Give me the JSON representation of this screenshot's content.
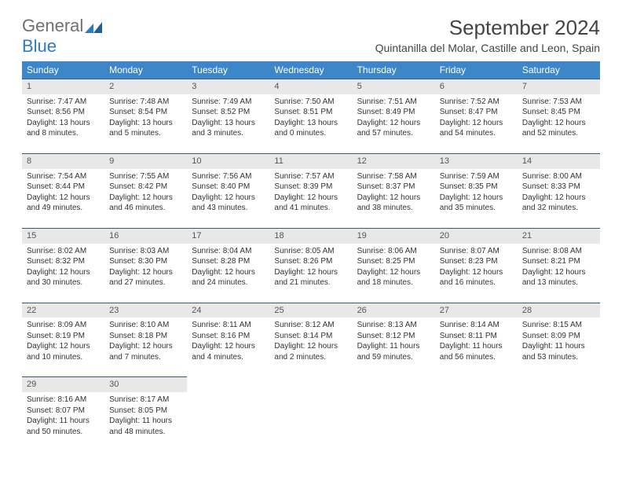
{
  "logo": {
    "text_general": "General",
    "text_blue": "Blue"
  },
  "title": "September 2024",
  "location": "Quintanilla del Molar, Castille and Leon, Spain",
  "colors": {
    "header_bg": "#3d87c9",
    "header_text": "#ffffff",
    "daynum_bg": "#e8e8e8",
    "row_border": "#2c5d8a",
    "logo_blue": "#2e7cc0",
    "logo_gray": "#707070"
  },
  "weekdays": [
    "Sunday",
    "Monday",
    "Tuesday",
    "Wednesday",
    "Thursday",
    "Friday",
    "Saturday"
  ],
  "cells": [
    {
      "n": "1",
      "sr": "7:47 AM",
      "ss": "8:56 PM",
      "dl": "13 hours and 8 minutes."
    },
    {
      "n": "2",
      "sr": "7:48 AM",
      "ss": "8:54 PM",
      "dl": "13 hours and 5 minutes."
    },
    {
      "n": "3",
      "sr": "7:49 AM",
      "ss": "8:52 PM",
      "dl": "13 hours and 3 minutes."
    },
    {
      "n": "4",
      "sr": "7:50 AM",
      "ss": "8:51 PM",
      "dl": "13 hours and 0 minutes."
    },
    {
      "n": "5",
      "sr": "7:51 AM",
      "ss": "8:49 PM",
      "dl": "12 hours and 57 minutes."
    },
    {
      "n": "6",
      "sr": "7:52 AM",
      "ss": "8:47 PM",
      "dl": "12 hours and 54 minutes."
    },
    {
      "n": "7",
      "sr": "7:53 AM",
      "ss": "8:45 PM",
      "dl": "12 hours and 52 minutes."
    },
    {
      "n": "8",
      "sr": "7:54 AM",
      "ss": "8:44 PM",
      "dl": "12 hours and 49 minutes."
    },
    {
      "n": "9",
      "sr": "7:55 AM",
      "ss": "8:42 PM",
      "dl": "12 hours and 46 minutes."
    },
    {
      "n": "10",
      "sr": "7:56 AM",
      "ss": "8:40 PM",
      "dl": "12 hours and 43 minutes."
    },
    {
      "n": "11",
      "sr": "7:57 AM",
      "ss": "8:39 PM",
      "dl": "12 hours and 41 minutes."
    },
    {
      "n": "12",
      "sr": "7:58 AM",
      "ss": "8:37 PM",
      "dl": "12 hours and 38 minutes."
    },
    {
      "n": "13",
      "sr": "7:59 AM",
      "ss": "8:35 PM",
      "dl": "12 hours and 35 minutes."
    },
    {
      "n": "14",
      "sr": "8:00 AM",
      "ss": "8:33 PM",
      "dl": "12 hours and 32 minutes."
    },
    {
      "n": "15",
      "sr": "8:02 AM",
      "ss": "8:32 PM",
      "dl": "12 hours and 30 minutes."
    },
    {
      "n": "16",
      "sr": "8:03 AM",
      "ss": "8:30 PM",
      "dl": "12 hours and 27 minutes."
    },
    {
      "n": "17",
      "sr": "8:04 AM",
      "ss": "8:28 PM",
      "dl": "12 hours and 24 minutes."
    },
    {
      "n": "18",
      "sr": "8:05 AM",
      "ss": "8:26 PM",
      "dl": "12 hours and 21 minutes."
    },
    {
      "n": "19",
      "sr": "8:06 AM",
      "ss": "8:25 PM",
      "dl": "12 hours and 18 minutes."
    },
    {
      "n": "20",
      "sr": "8:07 AM",
      "ss": "8:23 PM",
      "dl": "12 hours and 16 minutes."
    },
    {
      "n": "21",
      "sr": "8:08 AM",
      "ss": "8:21 PM",
      "dl": "12 hours and 13 minutes."
    },
    {
      "n": "22",
      "sr": "8:09 AM",
      "ss": "8:19 PM",
      "dl": "12 hours and 10 minutes."
    },
    {
      "n": "23",
      "sr": "8:10 AM",
      "ss": "8:18 PM",
      "dl": "12 hours and 7 minutes."
    },
    {
      "n": "24",
      "sr": "8:11 AM",
      "ss": "8:16 PM",
      "dl": "12 hours and 4 minutes."
    },
    {
      "n": "25",
      "sr": "8:12 AM",
      "ss": "8:14 PM",
      "dl": "12 hours and 2 minutes."
    },
    {
      "n": "26",
      "sr": "8:13 AM",
      "ss": "8:12 PM",
      "dl": "11 hours and 59 minutes."
    },
    {
      "n": "27",
      "sr": "8:14 AM",
      "ss": "8:11 PM",
      "dl": "11 hours and 56 minutes."
    },
    {
      "n": "28",
      "sr": "8:15 AM",
      "ss": "8:09 PM",
      "dl": "11 hours and 53 minutes."
    },
    {
      "n": "29",
      "sr": "8:16 AM",
      "ss": "8:07 PM",
      "dl": "11 hours and 50 minutes."
    },
    {
      "n": "30",
      "sr": "8:17 AM",
      "ss": "8:05 PM",
      "dl": "11 hours and 48 minutes."
    }
  ],
  "labels": {
    "sunrise": "Sunrise:",
    "sunset": "Sunset:",
    "daylight": "Daylight:"
  }
}
